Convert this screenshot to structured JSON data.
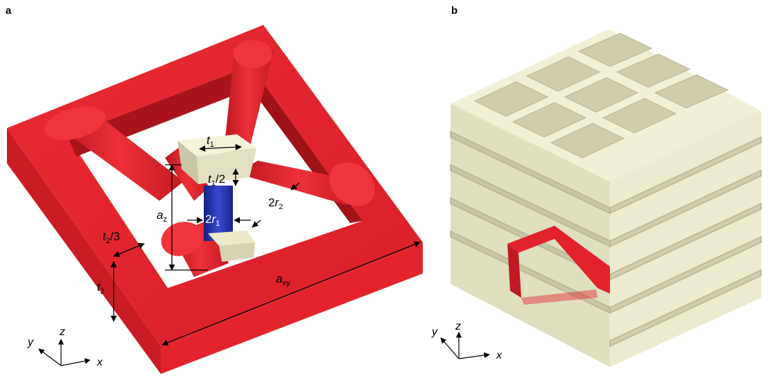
{
  "panels": {
    "a": {
      "letter": "a"
    },
    "b": {
      "letter": "b"
    }
  },
  "dimension_labels": {
    "t1": {
      "base": "t",
      "sub": "1"
    },
    "t1_half": {
      "base": "t",
      "sub": "1",
      "suffix": "/2"
    },
    "az": {
      "base": "a",
      "sub": "z"
    },
    "two_r1": {
      "prefix": "2",
      "base": "r",
      "sub": "1"
    },
    "two_r2": {
      "prefix": "2",
      "base": "r",
      "sub": "2"
    },
    "t2_third": {
      "base": "t",
      "sub": "2",
      "suffix": "/3"
    },
    "t2": {
      "base": "t",
      "sub": "2"
    },
    "axy": {
      "base": "a",
      "sub": "xy"
    }
  },
  "axes": {
    "a": {
      "x": "x",
      "y": "y",
      "z": "z"
    },
    "b": {
      "x": "x",
      "y": "y",
      "z": "z"
    }
  },
  "colors": {
    "frame_red": "#e2232c",
    "frame_red_dark": "#b3161d",
    "strut_blue": "#1f2fa8",
    "cube_cream": "#ecebd0",
    "lattice_cream": "#f3f2d8",
    "lattice_shadow": "#c9c7a8"
  }
}
